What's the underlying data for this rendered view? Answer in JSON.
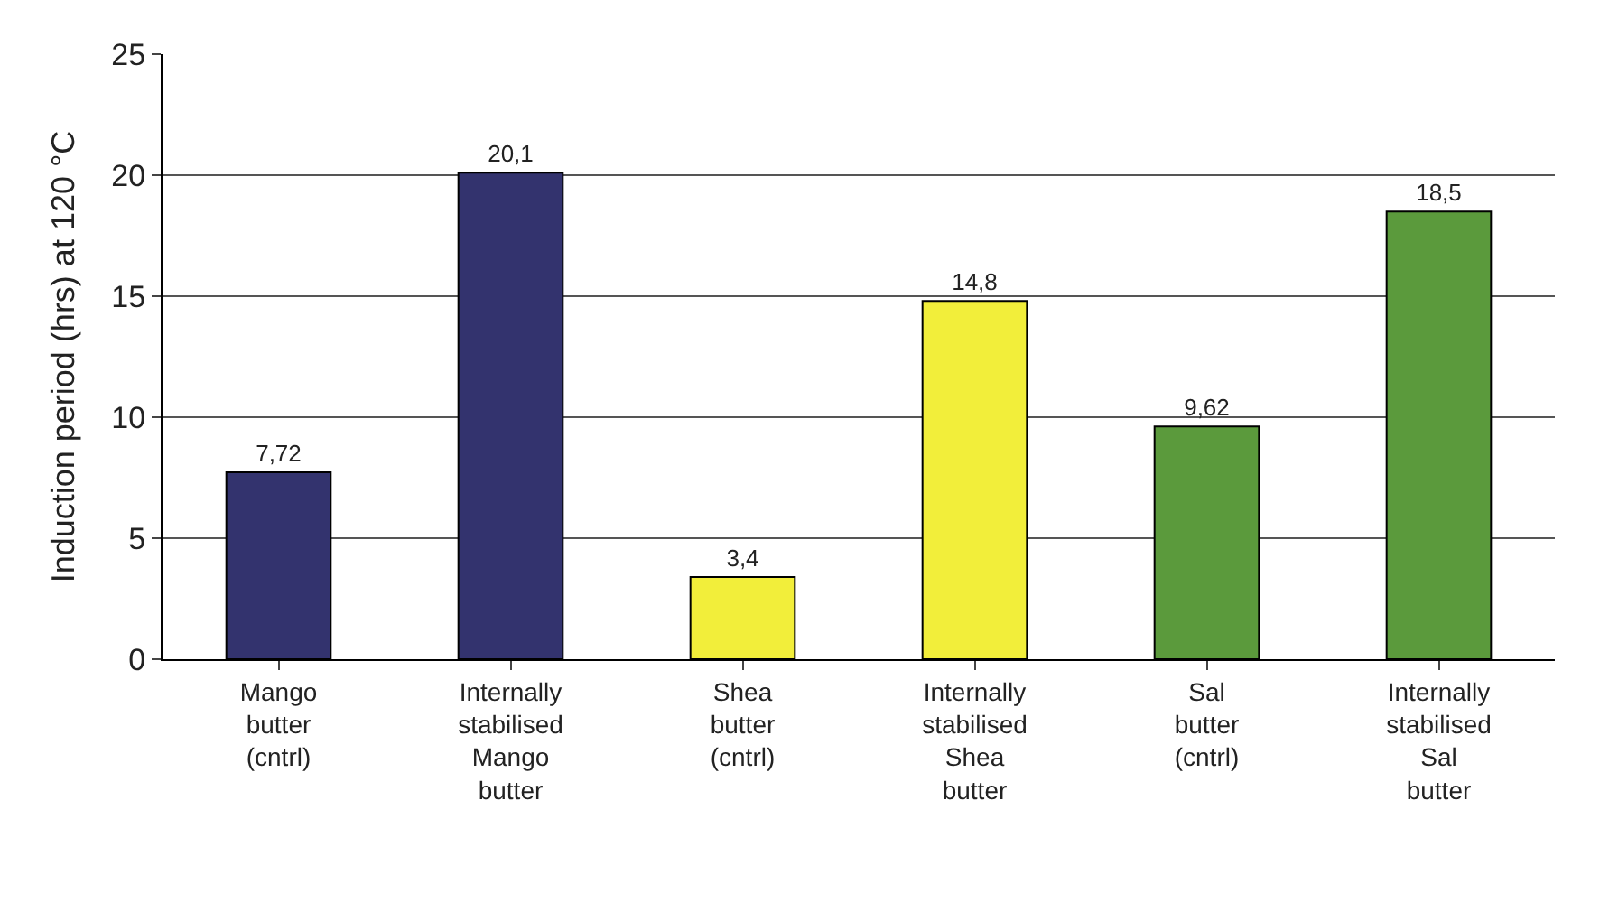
{
  "chart_data": {
    "type": "bar",
    "ylabel": "Induction period (hrs) at 120 °C",
    "categories": [
      "Mango\nbutter\n(cntrl)",
      "Internally\nstabilised\nMango\nbutter",
      "Shea\nbutter\n(cntrl)",
      "Internally\nstabilised\nShea\nbutter",
      "Sal\nbutter\n(cntrl)",
      "Internally\nstabilised\nSal\nbutter"
    ],
    "values": [
      7.72,
      20.1,
      3.4,
      14.8,
      9.62,
      18.5
    ],
    "value_labels": [
      "7,72",
      "20,1",
      "3,4",
      "14,8",
      "9,62",
      "18,5"
    ],
    "colors": [
      "#33336e",
      "#33336e",
      "#f2ee3a",
      "#f2ee3a",
      "#5b9a3c",
      "#5b9a3c"
    ],
    "ylim": [
      0,
      25
    ],
    "yticks": [
      0,
      5,
      10,
      15,
      20,
      25
    ],
    "grid": "y",
    "legend": false
  }
}
